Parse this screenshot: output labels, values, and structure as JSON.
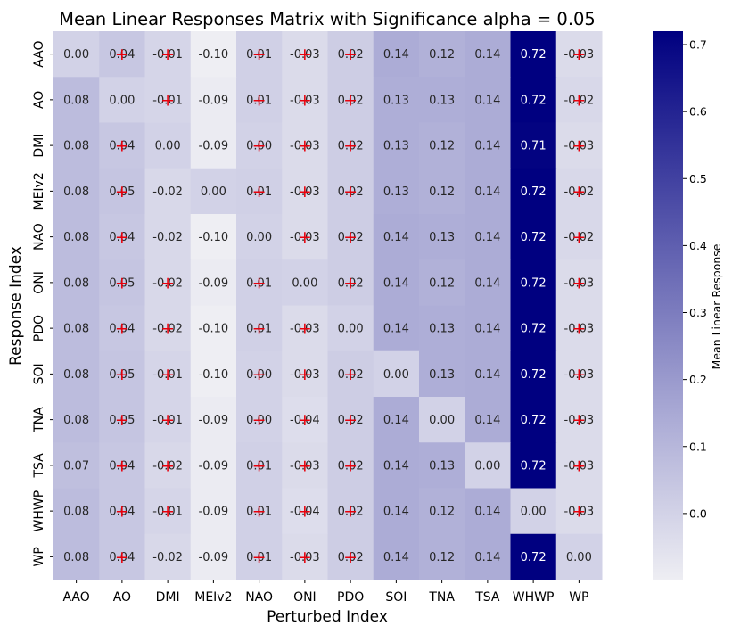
{
  "chart_data": {
    "type": "heatmap",
    "title": "Mean Linear Responses Matrix with Significance alpha = 0.05",
    "xlabel": "Perturbed Index",
    "ylabel": "Response Index",
    "x_categories": [
      "AAO",
      "AO",
      "DMI",
      "MEIv2",
      "NAO",
      "ONI",
      "PDO",
      "SOI",
      "TNA",
      "TSA",
      "WHWP",
      "WP"
    ],
    "y_categories": [
      "AAO",
      "AO",
      "DMI",
      "MEIv2",
      "NAO",
      "ONI",
      "PDO",
      "SOI",
      "TNA",
      "TSA",
      "WHWP",
      "WP"
    ],
    "values": [
      [
        0.0,
        0.04,
        -0.01,
        -0.1,
        0.01,
        -0.03,
        0.02,
        0.14,
        0.12,
        0.14,
        0.72,
        -0.03
      ],
      [
        0.08,
        0.0,
        -0.01,
        -0.09,
        0.01,
        -0.03,
        0.02,
        0.13,
        0.13,
        0.14,
        0.72,
        -0.02
      ],
      [
        0.08,
        0.04,
        0.0,
        -0.09,
        0.0,
        -0.03,
        0.02,
        0.13,
        0.12,
        0.14,
        0.71,
        -0.03
      ],
      [
        0.08,
        0.05,
        -0.02,
        0.0,
        0.01,
        -0.03,
        0.02,
        0.13,
        0.12,
        0.14,
        0.72,
        -0.02
      ],
      [
        0.08,
        0.04,
        -0.02,
        -0.1,
        0.0,
        -0.03,
        0.02,
        0.14,
        0.13,
        0.14,
        0.72,
        -0.02
      ],
      [
        0.08,
        0.05,
        -0.02,
        -0.09,
        0.01,
        0.0,
        0.02,
        0.14,
        0.12,
        0.14,
        0.72,
        -0.03
      ],
      [
        0.08,
        0.04,
        -0.02,
        -0.1,
        0.01,
        -0.03,
        0.0,
        0.14,
        0.13,
        0.14,
        0.72,
        -0.03
      ],
      [
        0.08,
        0.05,
        -0.01,
        -0.1,
        0.0,
        -0.03,
        0.02,
        0.0,
        0.13,
        0.14,
        0.72,
        -0.03
      ],
      [
        0.08,
        0.05,
        -0.01,
        -0.09,
        0.0,
        -0.04,
        0.02,
        0.14,
        0.0,
        0.14,
        0.72,
        -0.03
      ],
      [
        0.07,
        0.04,
        -0.02,
        -0.09,
        0.01,
        -0.03,
        0.02,
        0.14,
        0.13,
        0.0,
        0.72,
        -0.03
      ],
      [
        0.08,
        0.04,
        -0.01,
        -0.09,
        0.01,
        -0.04,
        0.02,
        0.14,
        0.12,
        0.14,
        0.0,
        -0.03
      ],
      [
        0.08,
        0.04,
        -0.02,
        -0.09,
        0.01,
        -0.03,
        0.02,
        0.14,
        0.12,
        0.14,
        0.72,
        0.0
      ]
    ],
    "significance_marker": "+",
    "significance_color": "#e8000b",
    "not_significant": [
      [
        false,
        true,
        true,
        false,
        true,
        true,
        true,
        false,
        false,
        false,
        false,
        true
      ],
      [
        false,
        false,
        true,
        false,
        true,
        true,
        true,
        false,
        false,
        false,
        false,
        true
      ],
      [
        false,
        true,
        false,
        false,
        true,
        true,
        true,
        false,
        false,
        false,
        false,
        true
      ],
      [
        false,
        true,
        false,
        false,
        true,
        true,
        true,
        false,
        false,
        false,
        false,
        true
      ],
      [
        false,
        true,
        false,
        false,
        false,
        true,
        true,
        false,
        false,
        false,
        false,
        true
      ],
      [
        false,
        true,
        true,
        false,
        true,
        false,
        true,
        false,
        false,
        false,
        false,
        true
      ],
      [
        false,
        true,
        true,
        false,
        true,
        true,
        false,
        false,
        false,
        false,
        false,
        true
      ],
      [
        false,
        true,
        true,
        false,
        true,
        true,
        true,
        false,
        false,
        false,
        false,
        true
      ],
      [
        false,
        true,
        true,
        false,
        true,
        true,
        true,
        false,
        false,
        false,
        false,
        true
      ],
      [
        false,
        true,
        true,
        false,
        true,
        true,
        true,
        false,
        false,
        false,
        false,
        true
      ],
      [
        false,
        true,
        true,
        false,
        true,
        true,
        true,
        false,
        false,
        false,
        false,
        true
      ],
      [
        false,
        true,
        false,
        false,
        true,
        true,
        true,
        false,
        false,
        false,
        false,
        false
      ]
    ],
    "colorbar": {
      "label": "Mean Linear Response",
      "vmin": -0.1,
      "vmax": 0.72,
      "ticks": [
        0.7,
        0.6,
        0.5,
        0.4,
        0.3,
        0.2,
        0.1,
        0.0
      ],
      "tick_labels": [
        "0.7",
        "0.6",
        "0.5",
        "0.4",
        "0.3",
        "0.2",
        "0.1",
        "0.0"
      ],
      "color_low": "#eeeef3",
      "color_mid": "#aaaad5",
      "color_high": "#000080"
    }
  }
}
